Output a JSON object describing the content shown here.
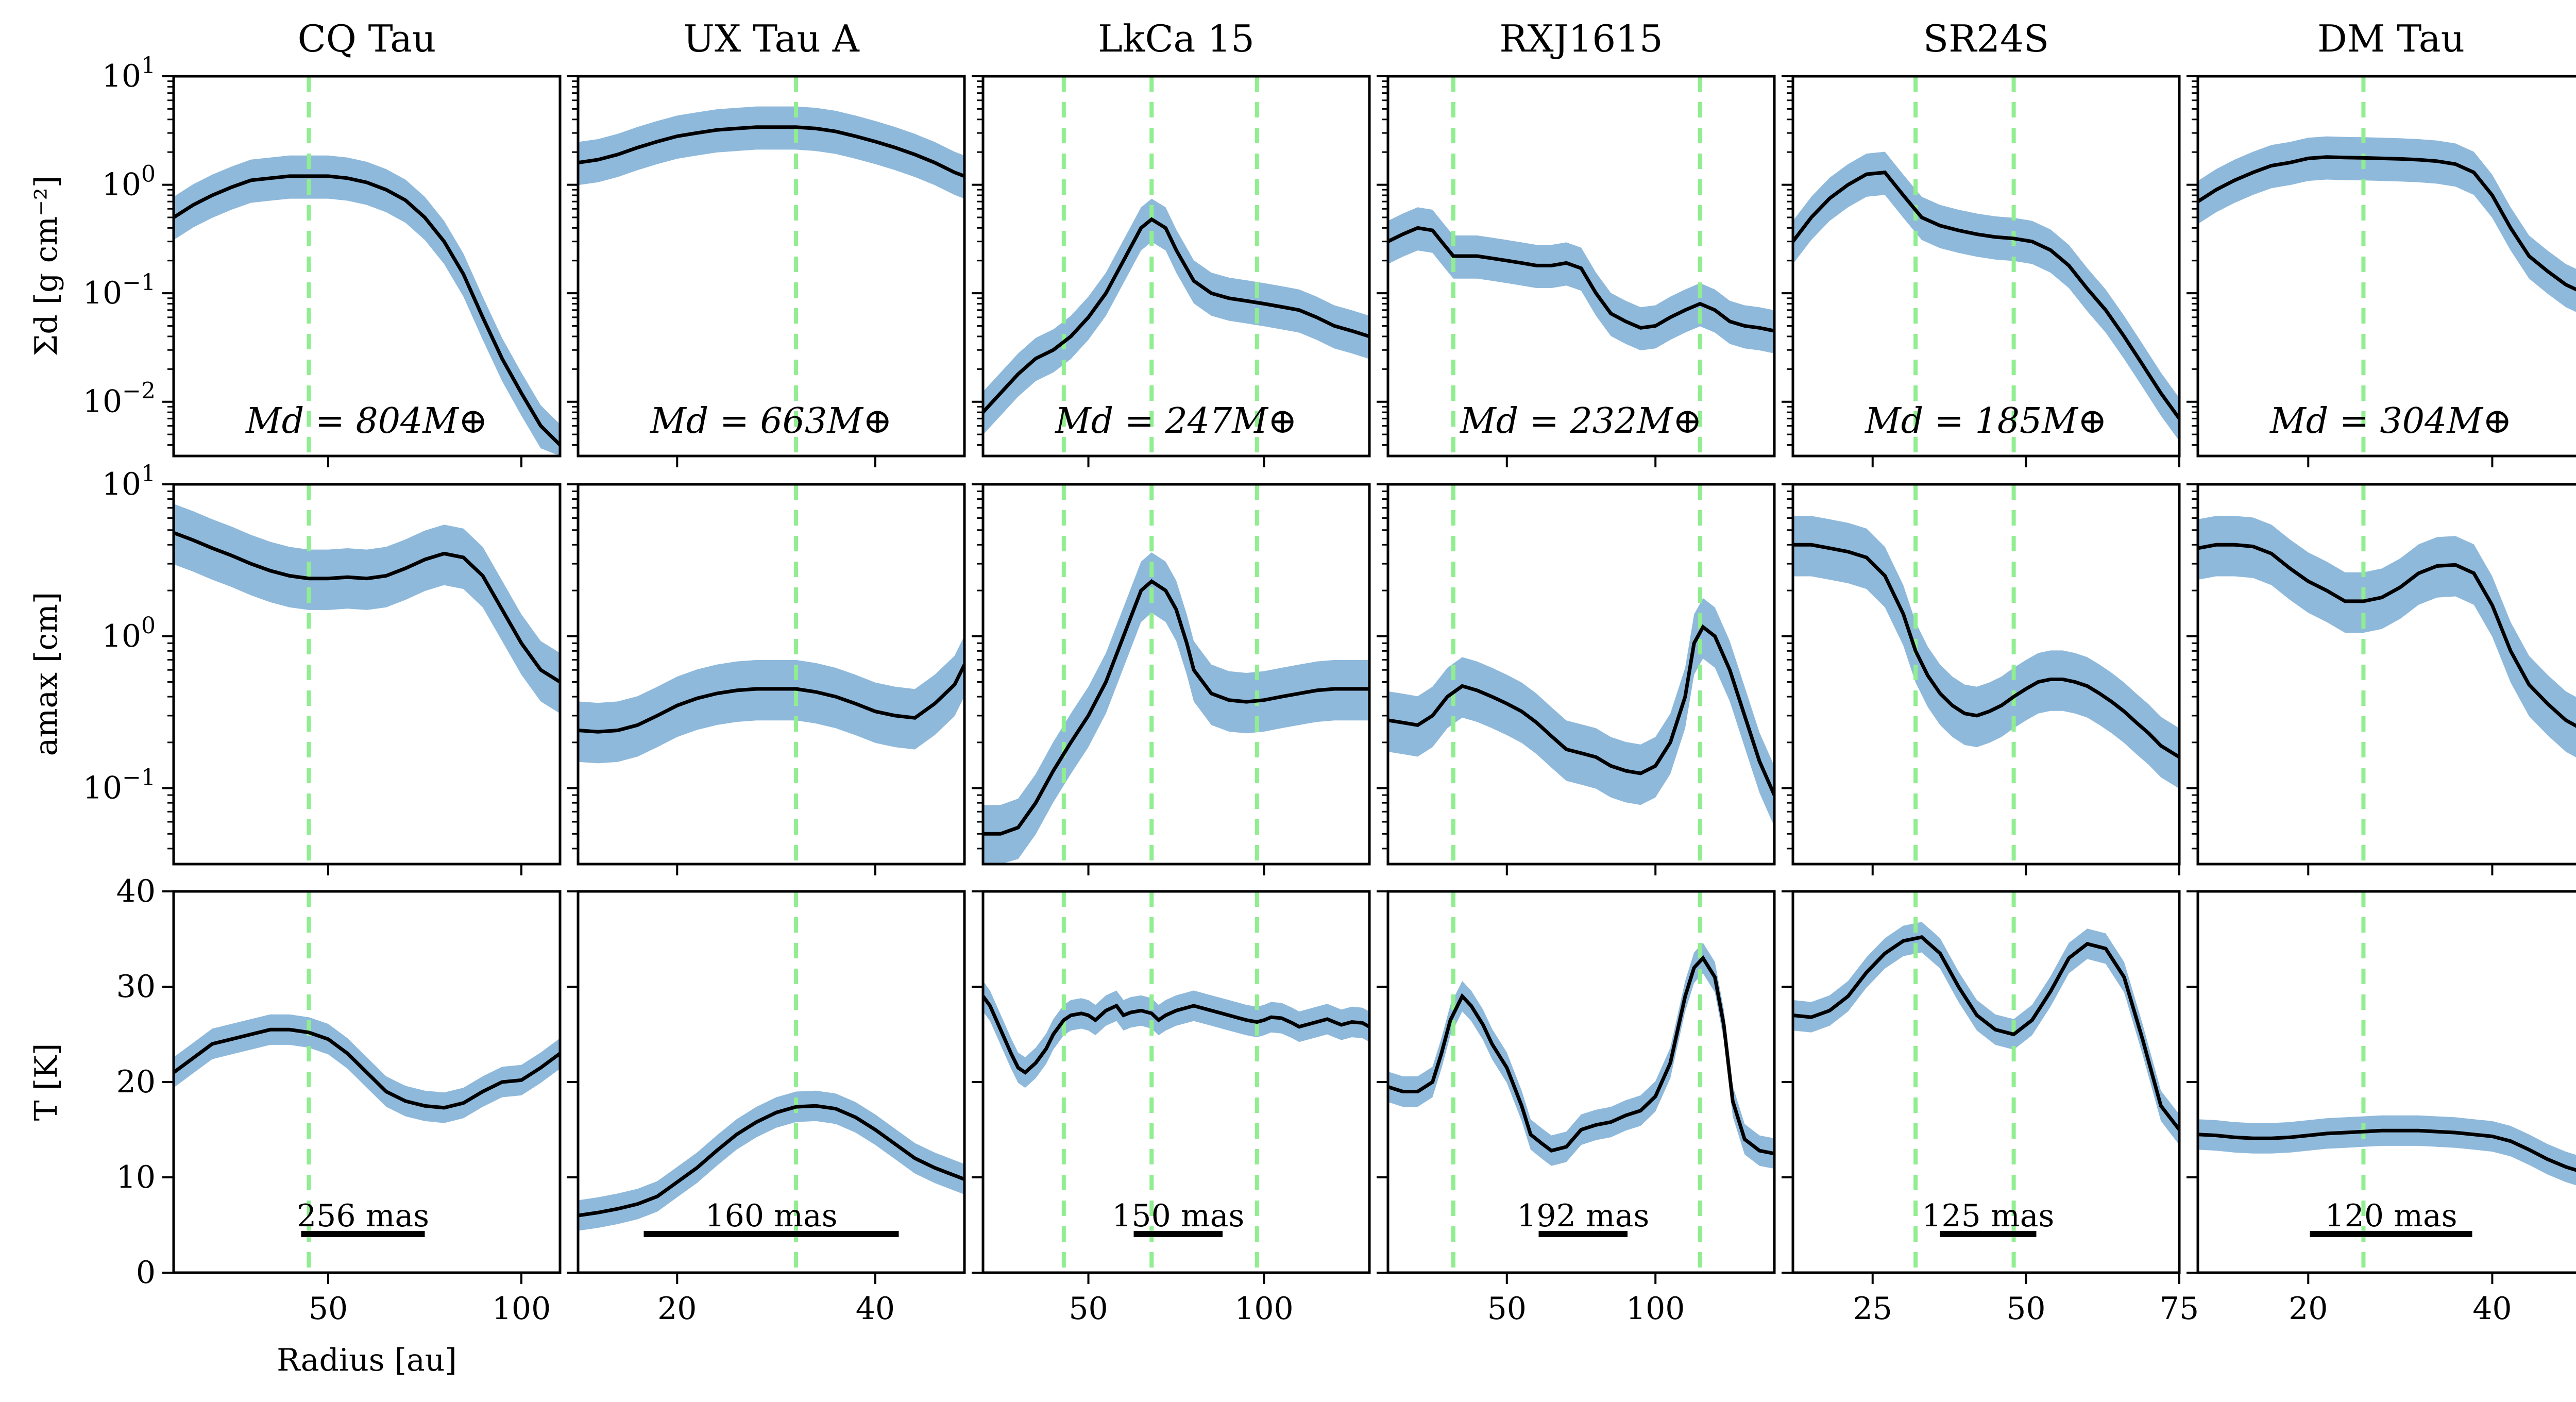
{
  "figure": {
    "ylabels": [
      "Σd [g cm⁻²]",
      "amax [cm]",
      "T [K]"
    ],
    "xlabel": "Radius [au]"
  },
  "colors": {
    "band": "#8fb9db",
    "line": "#000000",
    "gap": "#90ee90"
  },
  "chart_data": [
    {
      "type": "line",
      "title": "CQ Tau",
      "xlim": [
        10,
        110
      ],
      "xticks": [
        50,
        100
      ],
      "gaps": [
        45
      ],
      "sigma": {
        "x": [
          10,
          15,
          20,
          25,
          30,
          35,
          40,
          45,
          50,
          55,
          60,
          65,
          70,
          75,
          80,
          85,
          90,
          95,
          100,
          105,
          110
        ],
        "y": [
          0.5,
          0.65,
          0.8,
          0.95,
          1.1,
          1.15,
          1.2,
          1.2,
          1.2,
          1.15,
          1.05,
          0.9,
          0.72,
          0.5,
          0.3,
          0.15,
          0.06,
          0.025,
          0.012,
          0.006,
          0.004
        ]
      },
      "amax": {
        "x": [
          10,
          15,
          20,
          25,
          30,
          35,
          40,
          45,
          50,
          55,
          60,
          65,
          70,
          75,
          80,
          85,
          90,
          95,
          100,
          105,
          110
        ],
        "y": [
          4.8,
          4.3,
          3.8,
          3.4,
          3.0,
          2.7,
          2.5,
          2.4,
          2.4,
          2.45,
          2.4,
          2.5,
          2.8,
          3.2,
          3.5,
          3.3,
          2.5,
          1.5,
          0.9,
          0.6,
          0.5
        ]
      },
      "temp": {
        "x": [
          10,
          15,
          20,
          25,
          30,
          35,
          40,
          45,
          50,
          55,
          60,
          65,
          70,
          75,
          80,
          85,
          90,
          95,
          100,
          105,
          110
        ],
        "y": [
          21,
          22.5,
          24,
          24.5,
          25,
          25.5,
          25.5,
          25.2,
          24.5,
          23,
          21,
          19,
          18,
          17.5,
          17.3,
          17.8,
          19,
          20,
          20.2,
          21.5,
          23
        ]
      },
      "mass_label": "Md = 804M⊕",
      "scalebar": "256 mas"
    },
    {
      "type": "line",
      "title": "UX Tau A",
      "xlim": [
        10,
        49
      ],
      "xticks": [
        20,
        40
      ],
      "gaps": [
        32
      ],
      "sigma": {
        "x": [
          10,
          12,
          14,
          16,
          18,
          20,
          22,
          24,
          26,
          28,
          30,
          32,
          34,
          36,
          38,
          40,
          42,
          44,
          46,
          48,
          49
        ],
        "y": [
          1.6,
          1.7,
          1.9,
          2.2,
          2.5,
          2.8,
          3.0,
          3.2,
          3.3,
          3.4,
          3.4,
          3.4,
          3.3,
          3.1,
          2.8,
          2.5,
          2.2,
          1.9,
          1.6,
          1.3,
          1.2
        ]
      },
      "amax": {
        "x": [
          10,
          12,
          14,
          16,
          18,
          20,
          22,
          24,
          26,
          28,
          30,
          32,
          34,
          36,
          38,
          40,
          42,
          44,
          46,
          48,
          49
        ],
        "y": [
          0.24,
          0.235,
          0.24,
          0.26,
          0.3,
          0.35,
          0.39,
          0.42,
          0.44,
          0.45,
          0.45,
          0.45,
          0.43,
          0.4,
          0.36,
          0.32,
          0.3,
          0.29,
          0.36,
          0.48,
          0.65
        ]
      },
      "temp": {
        "x": [
          10,
          12,
          14,
          16,
          18,
          20,
          22,
          24,
          26,
          28,
          30,
          32,
          34,
          36,
          38,
          40,
          42,
          44,
          46,
          48,
          49
        ],
        "y": [
          6,
          6.3,
          6.7,
          7.2,
          8,
          9.5,
          11,
          12.8,
          14.5,
          15.8,
          16.8,
          17.4,
          17.5,
          17.2,
          16.3,
          15,
          13.5,
          12,
          11,
          10.2,
          9.8
        ]
      },
      "mass_label": "Md = 663M⊕",
      "scalebar": "160 mas"
    },
    {
      "type": "line",
      "title": "LkCa 15",
      "xlim": [
        20,
        130
      ],
      "xticks": [
        50,
        100
      ],
      "gaps": [
        43,
        68,
        98
      ],
      "sigma": {
        "x": [
          20,
          25,
          30,
          35,
          40,
          45,
          50,
          55,
          60,
          65,
          68,
          72,
          75,
          80,
          85,
          90,
          95,
          100,
          105,
          110,
          115,
          120,
          125,
          130
        ],
        "y": [
          0.008,
          0.012,
          0.018,
          0.025,
          0.03,
          0.04,
          0.06,
          0.1,
          0.2,
          0.4,
          0.48,
          0.4,
          0.25,
          0.13,
          0.1,
          0.09,
          0.085,
          0.08,
          0.075,
          0.07,
          0.06,
          0.05,
          0.045,
          0.04
        ]
      },
      "amax": {
        "x": [
          20,
          25,
          30,
          35,
          40,
          45,
          50,
          55,
          60,
          65,
          68,
          72,
          75,
          78,
          80,
          85,
          90,
          95,
          100,
          105,
          110,
          115,
          120,
          125,
          130
        ],
        "y": [
          0.05,
          0.05,
          0.055,
          0.08,
          0.13,
          0.2,
          0.3,
          0.5,
          1.0,
          2.0,
          2.3,
          2.0,
          1.5,
          0.9,
          0.6,
          0.42,
          0.38,
          0.37,
          0.38,
          0.4,
          0.42,
          0.44,
          0.45,
          0.45,
          0.45
        ]
      },
      "temp": {
        "x": [
          20,
          22,
          25,
          28,
          30,
          32,
          35,
          38,
          40,
          43,
          45,
          48,
          50,
          52,
          55,
          58,
          60,
          62,
          65,
          68,
          70,
          72,
          75,
          78,
          80,
          82,
          85,
          88,
          90,
          92,
          95,
          98,
          100,
          102,
          105,
          108,
          110,
          112,
          115,
          118,
          120,
          122,
          125,
          128,
          130
        ],
        "y": [
          29,
          28,
          25.5,
          23,
          21.5,
          21,
          22,
          23.5,
          25,
          26.5,
          27,
          27.2,
          27,
          26.5,
          27.5,
          28,
          27,
          27.3,
          27.5,
          27.2,
          26.5,
          27,
          27.5,
          27.8,
          28,
          27.8,
          27.5,
          27.2,
          27,
          26.8,
          26.5,
          26.3,
          26.5,
          26.8,
          26.7,
          26.2,
          25.8,
          26,
          26.3,
          26.6,
          26.3,
          26,
          26.3,
          26.2,
          25.8
        ]
      },
      "mass_label": "Md = 247M⊕",
      "scalebar": "150 mas"
    },
    {
      "type": "line",
      "title": "RXJ1615",
      "xlim": [
        10,
        140
      ],
      "xticks": [
        50,
        100
      ],
      "gaps": [
        32,
        115
      ],
      "sigma": {
        "x": [
          10,
          15,
          20,
          25,
          28,
          32,
          35,
          40,
          45,
          50,
          55,
          60,
          65,
          70,
          75,
          80,
          85,
          90,
          95,
          100,
          105,
          110,
          115,
          120,
          125,
          130,
          135,
          140
        ],
        "y": [
          0.3,
          0.35,
          0.4,
          0.38,
          0.3,
          0.22,
          0.22,
          0.22,
          0.21,
          0.2,
          0.19,
          0.18,
          0.18,
          0.19,
          0.17,
          0.1,
          0.065,
          0.055,
          0.048,
          0.05,
          0.06,
          0.07,
          0.08,
          0.07,
          0.055,
          0.05,
          0.048,
          0.045
        ]
      },
      "amax": {
        "x": [
          10,
          15,
          20,
          25,
          30,
          35,
          40,
          45,
          50,
          55,
          60,
          65,
          70,
          75,
          80,
          85,
          90,
          95,
          100,
          105,
          110,
          113,
          116,
          120,
          125,
          130,
          135,
          140
        ],
        "y": [
          0.28,
          0.27,
          0.26,
          0.3,
          0.4,
          0.47,
          0.44,
          0.4,
          0.36,
          0.32,
          0.27,
          0.22,
          0.18,
          0.17,
          0.16,
          0.14,
          0.13,
          0.125,
          0.14,
          0.2,
          0.4,
          0.9,
          1.15,
          1.0,
          0.6,
          0.3,
          0.15,
          0.09
        ]
      },
      "temp": {
        "x": [
          10,
          15,
          20,
          25,
          28,
          31,
          35,
          38,
          42,
          45,
          50,
          55,
          58,
          62,
          65,
          70,
          75,
          80,
          85,
          90,
          95,
          100,
          105,
          110,
          113,
          116,
          120,
          123,
          126,
          130,
          135,
          140
        ],
        "y": [
          19.5,
          19,
          19,
          20,
          23,
          26.5,
          29,
          28,
          26,
          24,
          21.5,
          17.5,
          14.5,
          13.5,
          12.8,
          13.2,
          15,
          15.5,
          15.8,
          16.5,
          17,
          18.5,
          22,
          29,
          32,
          33,
          31,
          26,
          18,
          14,
          12.8,
          12.5
        ]
      },
      "mass_label": "Md = 232M⊕",
      "scalebar": "192 mas"
    },
    {
      "type": "line",
      "title": "SR24S",
      "xlim": [
        12,
        75
      ],
      "xticks": [
        25,
        50,
        75
      ],
      "gaps": [
        32,
        48
      ],
      "sigma": {
        "x": [
          12,
          15,
          18,
          21,
          24,
          27,
          30,
          33,
          36,
          39,
          42,
          45,
          48,
          51,
          54,
          57,
          60,
          63,
          66,
          69,
          72,
          75
        ],
        "y": [
          0.3,
          0.5,
          0.75,
          1.0,
          1.25,
          1.3,
          0.8,
          0.5,
          0.42,
          0.38,
          0.35,
          0.33,
          0.32,
          0.3,
          0.25,
          0.18,
          0.11,
          0.07,
          0.04,
          0.022,
          0.012,
          0.007
        ]
      },
      "amax": {
        "x": [
          12,
          15,
          18,
          21,
          24,
          27,
          30,
          32,
          34,
          36,
          38,
          40,
          42,
          44,
          46,
          48,
          50,
          52,
          54,
          56,
          58,
          60,
          62,
          64,
          66,
          68,
          70,
          72,
          75
        ],
        "y": [
          4.0,
          4.0,
          3.8,
          3.6,
          3.3,
          2.5,
          1.4,
          0.8,
          0.55,
          0.42,
          0.35,
          0.31,
          0.3,
          0.32,
          0.35,
          0.4,
          0.45,
          0.5,
          0.52,
          0.52,
          0.5,
          0.47,
          0.42,
          0.37,
          0.32,
          0.27,
          0.23,
          0.19,
          0.16
        ]
      },
      "temp": {
        "x": [
          12,
          15,
          18,
          21,
          24,
          27,
          30,
          33,
          36,
          39,
          42,
          45,
          48,
          51,
          54,
          57,
          60,
          63,
          66,
          69,
          72,
          75
        ],
        "y": [
          27,
          26.8,
          27.5,
          29,
          31.5,
          33.5,
          34.8,
          35.2,
          33.5,
          30,
          27,
          25.5,
          25,
          26.5,
          29.5,
          33,
          34.5,
          34,
          31,
          24.5,
          17.5,
          15
        ]
      },
      "mass_label": "Md = 185M⊕",
      "scalebar": "125 mas"
    },
    {
      "type": "line",
      "title": "DM Tau",
      "xlim": [
        8,
        50
      ],
      "xticks": [
        20,
        40
      ],
      "gaps": [
        26
      ],
      "sigma": {
        "x": [
          8,
          10,
          12,
          14,
          16,
          18,
          20,
          22,
          24,
          26,
          28,
          30,
          32,
          34,
          36,
          38,
          40,
          42,
          44,
          46,
          48,
          50
        ],
        "y": [
          0.7,
          0.9,
          1.1,
          1.3,
          1.5,
          1.6,
          1.75,
          1.8,
          1.78,
          1.77,
          1.75,
          1.73,
          1.7,
          1.65,
          1.55,
          1.3,
          0.8,
          0.4,
          0.22,
          0.16,
          0.12,
          0.1
        ]
      },
      "amax": {
        "x": [
          8,
          10,
          12,
          14,
          16,
          18,
          20,
          22,
          24,
          26,
          28,
          30,
          32,
          34,
          36,
          38,
          40,
          42,
          44,
          46,
          48,
          50
        ],
        "y": [
          3.8,
          4.0,
          4.0,
          3.9,
          3.5,
          2.8,
          2.3,
          2.0,
          1.7,
          1.7,
          1.8,
          2.1,
          2.6,
          2.9,
          2.95,
          2.6,
          1.6,
          0.8,
          0.48,
          0.36,
          0.28,
          0.24
        ]
      },
      "temp": {
        "x": [
          8,
          10,
          12,
          14,
          16,
          18,
          20,
          22,
          24,
          26,
          28,
          30,
          32,
          34,
          36,
          38,
          40,
          42,
          44,
          46,
          48,
          50
        ],
        "y": [
          14.5,
          14.4,
          14.2,
          14.1,
          14.1,
          14.2,
          14.4,
          14.6,
          14.7,
          14.8,
          14.9,
          14.9,
          14.9,
          14.8,
          14.7,
          14.5,
          14.3,
          13.8,
          12.9,
          11.9,
          11.1,
          10.5
        ]
      },
      "mass_label": "Md = 304M⊕",
      "scalebar": "120 mas"
    }
  ]
}
